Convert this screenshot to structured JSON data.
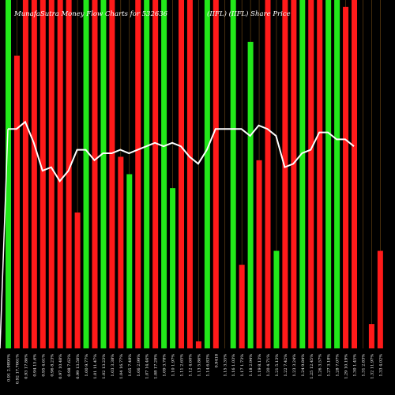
{
  "chart_data": {
    "type": "bar",
    "title": "MunafaSutra Money Flow Charts for 532636",
    "subtitle": "(IIFL) (IIFL) Share Price",
    "colors": {
      "background": "#000000",
      "up": "#22e81a",
      "down": "#ff1a1a",
      "line": "#ffffff",
      "grid": "#8a5a1a"
    },
    "ylim": [
      0,
      100
    ],
    "categories": [
      "Fri 25 Apr 2025",
      "Thu 24 Apr 2025",
      "Wed 23 Apr 2025",
      "Tue 22 Apr 2025",
      "Mon 21 Apr 2025",
      "Thu 17 Apr 2025",
      "Wed 16 Apr 2025",
      "Tue 15 Apr 2025",
      "Fri 11 Apr 2025",
      "Wed 09 Apr 2025",
      "Tue 08 Apr 2025",
      "Mon 07 Apr 2025",
      "Fri 04 Apr 2025",
      "Thu 03 Apr 2025",
      "Wed 02 Apr 2025",
      "Tue 01 Apr 2025",
      "Fri 28 Mar 2025",
      "Thu 27 Mar 2025",
      "Wed 26 Mar 2025",
      "Tue 25 Mar 2025",
      "Mon 24 Mar 2025",
      "Fri 21 Mar 2025",
      "Thu 20 Mar 2025",
      "Wed 19 Mar 2025",
      "Tue 18 Mar 2025",
      "Mon 17 Mar 2025",
      "Thu 13 Mar 2025",
      "Wed 12 Mar 2025",
      "Tue 11 Mar 2025",
      "Mon 10 Mar 2025",
      "Fri 07 Mar 2025",
      "Thu 06 Mar 2025",
      "Wed 05 Mar 2025",
      "Tue 04 Mar 2025",
      "Mon 03 Mar 2025",
      "Fri 28 Feb 2025",
      "Thu 27 Feb 2025",
      "Tue 25 Feb 2025",
      "Mon 24 Feb 2025",
      "Fri 21 Feb 2025",
      "Thu 20 Feb 2025",
      "Wed 19 Feb 2025",
      "Tue 18 Feb 2025",
      "Mon 17 Feb 2025"
    ],
    "tick_labels": [
      "0.91 2.9895%",
      "0.92 17.7061%",
      "0.93 17.86%",
      "0.94 15.6%",
      "0.95 4.61%",
      "0.96 8.23%",
      "0.97 10.48%",
      "0.98 7.62%",
      "0.99 13.58%",
      "1.00 9.77%",
      "1.01 11.47%",
      "1.02 13.23%",
      "1.03 3.38%",
      "1.04 16.77%",
      "1.05 7.48%",
      "1.06 2.99%",
      "1.07 14.44%",
      "1.08 17.29%",
      "1.09 3.78%",
      "1.10 1.97%",
      "1.11 2.65%",
      "1.12 4.60%",
      "1.13 5.86%",
      "1.14 6.83%",
      "0.9418",
      "1.15 3.35%",
      "1.16 1.03%",
      "1.17 1.73%",
      "1.18 2.94%",
      "1.19 8.13%",
      "1.20 4.71%",
      "1.21 5.13%",
      "1.22 7.42%",
      "1.23 3.24%",
      "1.24 9.84%",
      "1.25 12.45%",
      "1.26 3.57%",
      "1.27 3.18%",
      "1.28 7.07%",
      "1.29 10.19%",
      "1.30 1.45%",
      "1.31 2.83%",
      "1.32 11.97%",
      "1.33 4.02%"
    ],
    "bars": [
      {
        "value": 100,
        "dir": "up"
      },
      {
        "value": 84,
        "dir": "down"
      },
      {
        "value": 100,
        "dir": "down"
      },
      {
        "value": 100,
        "dir": "down"
      },
      {
        "value": 100,
        "dir": "down"
      },
      {
        "value": 100,
        "dir": "down"
      },
      {
        "value": 100,
        "dir": "down"
      },
      {
        "value": 100,
        "dir": "down"
      },
      {
        "value": 39,
        "dir": "down"
      },
      {
        "value": 100,
        "dir": "up"
      },
      {
        "value": 100,
        "dir": "down"
      },
      {
        "value": 100,
        "dir": "up"
      },
      {
        "value": 100,
        "dir": "down"
      },
      {
        "value": 55,
        "dir": "down"
      },
      {
        "value": 50,
        "dir": "up"
      },
      {
        "value": 100,
        "dir": "down"
      },
      {
        "value": 100,
        "dir": "up"
      },
      {
        "value": 100,
        "dir": "down"
      },
      {
        "value": 100,
        "dir": "up"
      },
      {
        "value": 46,
        "dir": "up"
      },
      {
        "value": 100,
        "dir": "down"
      },
      {
        "value": 100,
        "dir": "down"
      },
      {
        "value": 2,
        "dir": "down"
      },
      {
        "value": 100,
        "dir": "up"
      },
      {
        "value": 100,
        "dir": "down"
      },
      {
        "value": 0,
        "dir": "up"
      },
      {
        "value": 100,
        "dir": "up"
      },
      {
        "value": 24,
        "dir": "down"
      },
      {
        "value": 88,
        "dir": "up"
      },
      {
        "value": 54,
        "dir": "down"
      },
      {
        "value": 100,
        "dir": "down"
      },
      {
        "value": 28,
        "dir": "up"
      },
      {
        "value": 100,
        "dir": "down"
      },
      {
        "value": 100,
        "dir": "down"
      },
      {
        "value": 100,
        "dir": "up"
      },
      {
        "value": 100,
        "dir": "down"
      },
      {
        "value": 100,
        "dir": "down"
      },
      {
        "value": 100,
        "dir": "up"
      },
      {
        "value": 100,
        "dir": "up"
      },
      {
        "value": 98,
        "dir": "down"
      },
      {
        "value": 100,
        "dir": "down"
      },
      {
        "value": 0,
        "dir": "down"
      },
      {
        "value": 7,
        "dir": "down"
      },
      {
        "value": 28,
        "dir": "down"
      }
    ],
    "line": [
      63,
      63,
      65,
      59,
      51,
      52,
      48,
      51,
      57,
      57,
      54,
      56,
      56,
      57,
      56,
      57,
      58,
      59,
      58,
      59,
      58,
      55,
      53,
      57,
      63,
      63,
      63,
      63,
      61,
      64,
      63,
      61,
      52,
      53,
      56,
      57,
      62,
      62,
      60,
      60,
      58
    ]
  }
}
